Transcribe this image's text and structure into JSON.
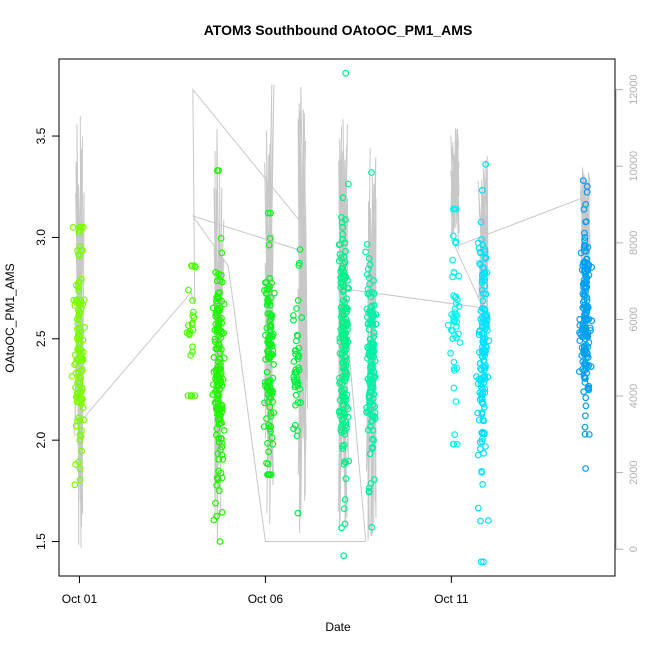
{
  "chart_data": {
    "type": "scatter",
    "title": "ATOM3 Southbound OAtoOC_PM1_AMS",
    "xlabel": "Date",
    "ylabel": "OAtoOC_PM1_AMS",
    "x_ticks": [
      "Oct 01",
      "Oct 06",
      "Oct 11"
    ],
    "x_tick_positions": [
      1,
      6,
      11
    ],
    "xlim": [
      0.45,
      15.4
    ],
    "ylim": [
      1.33,
      3.88
    ],
    "y_ticks": [
      1.5,
      2.0,
      2.5,
      3.0,
      3.5
    ],
    "y2_ticks": [
      0,
      2000,
      4000,
      6000,
      8000,
      10000,
      12000
    ],
    "y2lim": [
      -700,
      12800
    ],
    "y2_axis_color": "#b0b0b0",
    "grid": false,
    "point_style": "open circles, color varies with latitude (yellow-green to green to cyan to blue)",
    "altitude_trace": "light gray line on right axis (altitude)",
    "clusters": [
      {
        "x": 1.0,
        "n": 120,
        "min": 1.78,
        "max": 3.05,
        "mean": 2.45,
        "sd": 0.28,
        "color": "#7cfc00"
      },
      {
        "x": 4.0,
        "n": 25,
        "min": 2.22,
        "max": 2.86,
        "mean": 2.52,
        "sd": 0.18,
        "color": "#4cff00"
      },
      {
        "x": 4.75,
        "n": 170,
        "min": 1.5,
        "max": 3.33,
        "mean": 2.3,
        "sd": 0.33,
        "color": "#22f500"
      },
      {
        "x": 6.1,
        "n": 110,
        "min": 1.83,
        "max": 3.12,
        "mean": 2.4,
        "sd": 0.25,
        "color": "#10f020"
      },
      {
        "x": 6.85,
        "n": 45,
        "min": 1.64,
        "max": 2.94,
        "mean": 2.35,
        "sd": 0.3,
        "color": "#00f040"
      },
      {
        "x": 8.1,
        "n": 180,
        "min": 1.43,
        "max": 3.81,
        "mean": 2.5,
        "sd": 0.32,
        "color": "#00f08a"
      },
      {
        "x": 8.85,
        "n": 140,
        "min": 1.57,
        "max": 3.32,
        "mean": 2.35,
        "sd": 0.27,
        "color": "#00f0a8"
      },
      {
        "x": 11.1,
        "n": 50,
        "min": 1.98,
        "max": 3.14,
        "mean": 2.55,
        "sd": 0.28,
        "color": "#00f5f0"
      },
      {
        "x": 11.85,
        "n": 150,
        "min": 1.4,
        "max": 3.36,
        "mean": 2.45,
        "sd": 0.3,
        "color": "#00e0ff"
      },
      {
        "x": 14.6,
        "n": 160,
        "min": 1.86,
        "max": 3.28,
        "mean": 2.6,
        "sd": 0.24,
        "color": "#00a0f0"
      }
    ],
    "altitude_bursts": [
      {
        "x": 1.0,
        "top": 11800,
        "bottom": 0
      },
      {
        "x": 4.75,
        "top": 11000,
        "bottom": 200
      },
      {
        "x": 6.1,
        "top": 12300,
        "bottom": 200
      },
      {
        "x": 7.0,
        "top": 12100,
        "bottom": 200
      },
      {
        "x": 8.1,
        "top": 11500,
        "bottom": 300
      },
      {
        "x": 8.85,
        "top": 11000,
        "bottom": 200
      },
      {
        "x": 11.1,
        "top": 11000,
        "bottom": 7800
      },
      {
        "x": 11.85,
        "top": 10300,
        "bottom": 5400
      },
      {
        "x": 14.6,
        "top": 10000,
        "bottom": 7000
      }
    ],
    "altitude_connectors": [
      [
        1.0,
        3300
      ],
      [
        4.0,
        6700
      ],
      [
        4.1,
        6400
      ],
      [
        4.05,
        12000
      ],
      [
        6.9,
        8600
      ],
      [
        6.95,
        7800
      ],
      [
        4.05,
        8700
      ],
      [
        5.0,
        7400
      ],
      [
        6.0,
        200
      ],
      [
        8.7,
        200
      ],
      [
        8.1,
        6800
      ],
      [
        11.85,
        6300
      ],
      [
        11.1,
        7900
      ],
      [
        14.6,
        9200
      ]
    ]
  }
}
